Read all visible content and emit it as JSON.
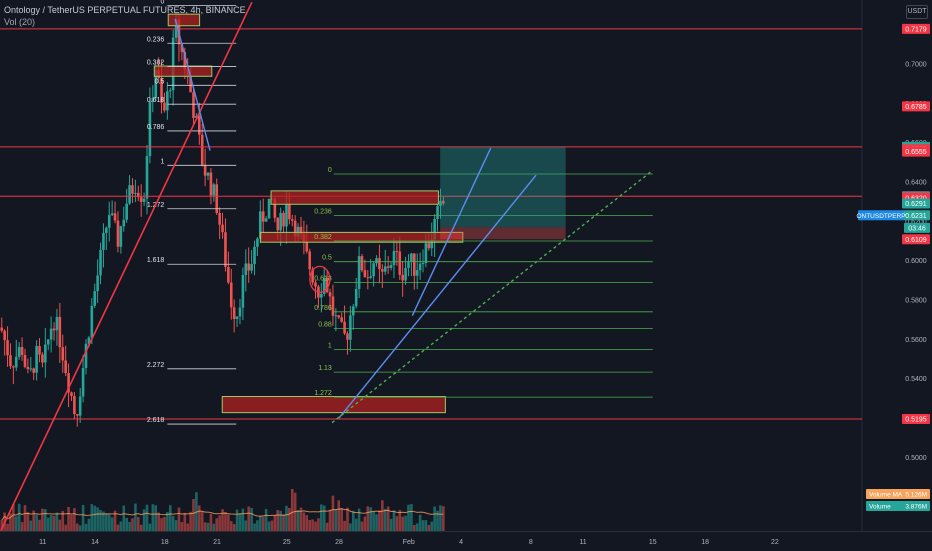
{
  "header": {
    "title": "Ontology / TetherUS PERPETUAL FUTURES, 4h, BINANCE",
    "volume_label": "Vol (20)",
    "currency": "USDT"
  },
  "colors": {
    "background": "#131722",
    "up": "#26a69a",
    "down": "#ef5350",
    "level_line": "#f23645",
    "fib_line": "#4caf50",
    "fib_text": "#8bc34a",
    "trend_line": "#5b8def",
    "grid_text": "#b2b5be"
  },
  "chart_data": {
    "type": "candlestick",
    "title": "Ontology / TetherUS PERPETUAL FUTURES, 4h, BINANCE",
    "symbol": "ONTUSDTPERP",
    "timeframe": "4h",
    "exchange": "BINANCE",
    "ylim": [
      0.4625,
      0.7326
    ],
    "y_ticks": [
      "0.7000",
      "0.6800",
      "0.6600",
      "0.6400",
      "0.6200",
      "0.6000",
      "0.5800",
      "0.5600",
      "0.5400",
      "0.5200",
      "0.5000",
      "0.4800"
    ],
    "x_ticks": [
      "11",
      "14",
      "18",
      "21",
      "25",
      "28",
      "Feb",
      "4",
      "8",
      "11",
      "15",
      "18",
      "22"
    ],
    "x_tick_days": [
      11,
      14,
      18,
      21,
      25,
      28,
      32,
      35,
      39,
      42,
      46,
      49,
      53
    ],
    "xlim_days": [
      8.55,
      58.0
    ],
    "last_bar_day": 34.0,
    "price_labels": [
      {
        "text": "0.7179",
        "value": 0.7179,
        "color": "#f23645"
      },
      {
        "text": "0.6785",
        "value": 0.6785,
        "color": "#f23645"
      },
      {
        "text": "0.6579",
        "value": 0.6579,
        "color": "#26a69a"
      },
      {
        "text": "0.6567",
        "value": 0.6567,
        "color": "#f23645"
      },
      {
        "text": "0.6555",
        "value": 0.6555,
        "color": "#f23645"
      },
      {
        "text": "0.6328",
        "value": 0.6328,
        "color": "#787b86"
      },
      {
        "text": "0.6320",
        "value": 0.632,
        "color": "#f23645"
      },
      {
        "text": "0.6291",
        "value": 0.6291,
        "color": "#26a69a"
      },
      {
        "text": "0.6231",
        "value": 0.6231,
        "color": "#26a69a"
      },
      {
        "text": "0.6109",
        "value": 0.6109,
        "color": "#f23645"
      },
      {
        "text": "0.5195",
        "value": 0.5195,
        "color": "#f23645"
      }
    ],
    "symbol_tag": {
      "text": "ONTUSDTPERP",
      "value": 0.6231
    },
    "countdown_tag": {
      "text": "03:46",
      "value": 0.6167
    },
    "volume_tags": [
      {
        "text": "Volume MA",
        "value_text": "5.126M",
        "color": "#f7a35c"
      },
      {
        "text": "Volume",
        "value_text": "3.876M",
        "color": "#26a69a"
      }
    ],
    "horizontal_levels": [
      0.7179,
      0.6579,
      0.6328,
      0.5195
    ],
    "fib_upper": {
      "day_range": [
        18.15,
        22.1
      ],
      "levels": [
        {
          "label": "0",
          "value": 0.7298
        },
        {
          "label": "0.236",
          "value": 0.7106
        },
        {
          "label": "0.382",
          "value": 0.6988
        },
        {
          "label": "0.5",
          "value": 0.6892
        },
        {
          "label": "0.618",
          "value": 0.6796
        },
        {
          "label": "0.786",
          "value": 0.666
        },
        {
          "label": "1",
          "value": 0.6485
        },
        {
          "label": "1.272",
          "value": 0.6264
        },
        {
          "label": "1.618",
          "value": 0.5982
        },
        {
          "label": "2.272",
          "value": 0.545
        },
        {
          "label": "2.618",
          "value": 0.5169
        }
      ]
    },
    "fib_lower": {
      "day_range": [
        27.7,
        46.0
      ],
      "levels": [
        {
          "label": "0",
          "value": 0.6441
        },
        {
          "label": "0.236",
          "value": 0.623
        },
        {
          "label": "0.382",
          "value": 0.61
        },
        {
          "label": "0.5",
          "value": 0.5995
        },
        {
          "label": "0.618",
          "value": 0.5889
        },
        {
          "label": "0.786",
          "value": 0.574
        },
        {
          "label": "0.88",
          "value": 0.5655
        },
        {
          "label": "1",
          "value": 0.5549
        },
        {
          "label": "1.13",
          "value": 0.5433
        },
        {
          "label": "1.272",
          "value": 0.5306
        }
      ]
    },
    "zones": [
      {
        "day_range": [
          18.2,
          20.0
        ],
        "low": 0.7195,
        "high": 0.7254
      },
      {
        "day_range": [
          17.4,
          20.7
        ],
        "low": 0.6938,
        "high": 0.699
      },
      {
        "day_range": [
          24.1,
          33.7
        ],
        "low": 0.6287,
        "high": 0.6355
      },
      {
        "day_range": [
          23.5,
          35.1
        ],
        "low": 0.6094,
        "high": 0.6144
      },
      {
        "day_range": [
          21.3,
          34.1
        ],
        "low": 0.5227,
        "high": 0.5309
      }
    ],
    "trend_lines": [
      {
        "from": [
          8.6,
          0.4627
        ],
        "to": [
          23.0,
          0.7315
        ],
        "color": "#f23645"
      },
      {
        "from": [
          18.6,
          0.723
        ],
        "to": [
          20.6,
          0.656
        ],
        "color": "#5b8def"
      },
      {
        "from": [
          32.2,
          0.572
        ],
        "to": [
          36.7,
          0.6573
        ],
        "color": "#5b8def"
      },
      {
        "from": [
          28.0,
          0.52
        ],
        "to": [
          39.3,
          0.6435
        ],
        "color": "#5b8def"
      },
      {
        "from": [
          27.6,
          0.5176
        ],
        "to": [
          46.0,
          0.646
        ],
        "color": "#4caf50",
        "dashed": true
      }
    ],
    "position_box": {
      "day_range": [
        33.8,
        41.0
      ],
      "entry": 0.617,
      "target": 0.6579,
      "stop": 0.6109
    },
    "volume_ma_last": "5.126M",
    "volume_last": "3.876M"
  }
}
